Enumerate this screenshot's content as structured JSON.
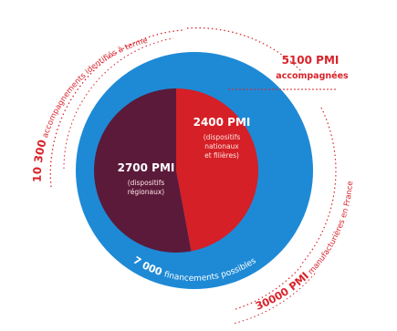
{
  "chart_data": {
    "type": "pie",
    "outer_ring": {
      "value_label": "7 000",
      "caption": "financements possibles",
      "color": "#1e8ad6"
    },
    "slices": [
      {
        "value": 2400,
        "value_label": "2400 PMI",
        "caption_lines": [
          "(dispositifs",
          "nationaux",
          "et filières)"
        ],
        "color": "#d42026"
      },
      {
        "value": 2700,
        "value_label": "2700 PMI",
        "caption_lines": [
          "(dispositifs",
          "régionaux)"
        ],
        "color": "#5b1a3a"
      }
    ],
    "annotations": {
      "top_arc": {
        "value_label": "10 300",
        "caption": "accompagnements identifiés à terme"
      },
      "callout": {
        "value_label": "5100 PMI",
        "caption": "accompagnées"
      },
      "bottom_arc": {
        "value_label": "30000 PMI",
        "caption": "manufacturières en France"
      }
    }
  },
  "colors": {
    "accent_red": "#d9242b",
    "ring_blue": "#1e8ad6",
    "slice_dark": "#5b1a3a",
    "slice_red": "#d42026"
  }
}
